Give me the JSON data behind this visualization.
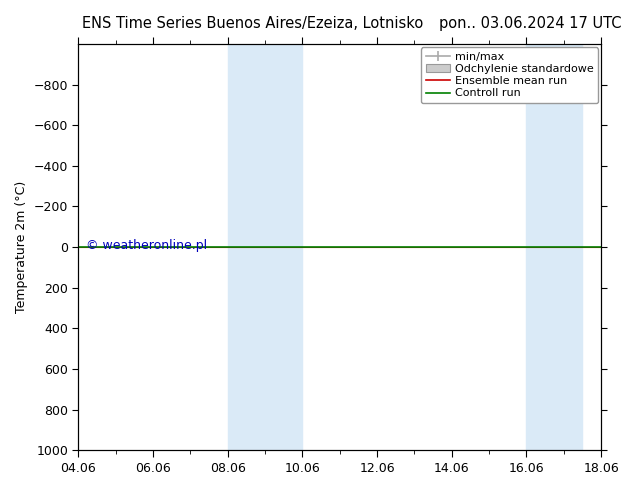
{
  "title_left": "ENS Time Series Buenos Aires/Ezeiza, Lotnisko",
  "title_right": "pon.. 03.06.2024 17 UTC",
  "ylabel": "Temperature 2m (°C)",
  "ylim_top": -1000,
  "ylim_bottom": 1000,
  "yticks": [
    -800,
    -600,
    -400,
    -200,
    0,
    200,
    400,
    600,
    800,
    1000
  ],
  "xtick_labels": [
    "04.06",
    "06.06",
    "08.06",
    "10.06",
    "12.06",
    "14.06",
    "16.06",
    "18.06"
  ],
  "xtick_positions": [
    0,
    2,
    4,
    6,
    8,
    10,
    12,
    14
  ],
  "x_min": 0,
  "x_max": 14,
  "shaded_regions": [
    {
      "xstart": 4,
      "xend": 6,
      "color": "#daeaf7"
    },
    {
      "xstart": 12,
      "xend": 13.5,
      "color": "#daeaf7"
    }
  ],
  "hline_y": 0,
  "control_run_color": "#008000",
  "ensemble_mean_color": "#cc0000",
  "legend_labels": [
    "min/max",
    "Odchylenie standardowe",
    "Ensemble mean run",
    "Controll run"
  ],
  "legend_minmax_color": "#aaaaaa",
  "legend_std_color": "#cccccc",
  "copyright_text": "© weatheronline.pl",
  "copyright_color": "#0000bb",
  "background_color": "#ffffff",
  "title_fontsize": 10.5,
  "ylabel_fontsize": 9,
  "tick_fontsize": 9,
  "legend_fontsize": 8
}
